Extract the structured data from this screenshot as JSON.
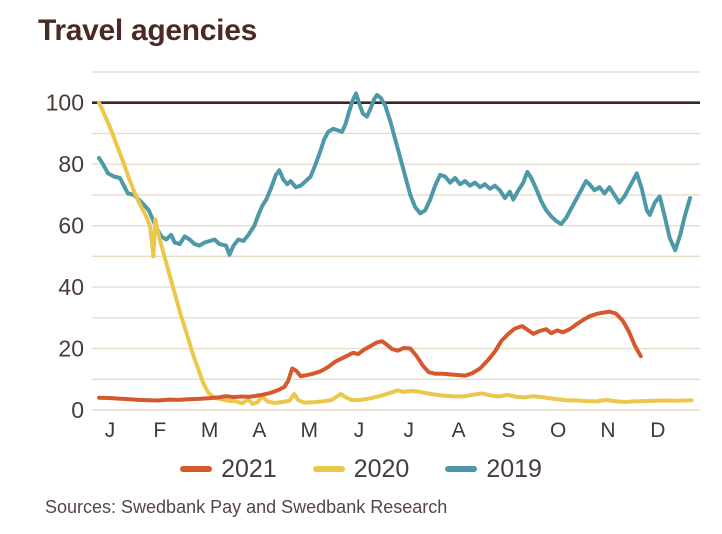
{
  "page": {
    "title": "Travel agencies",
    "source_note": "Sources: Swedbank Pay and Swedbank Research"
  },
  "chart_data": {
    "type": "line",
    "title": "Travel agencies",
    "xlabel": "",
    "ylabel": "",
    "x_axis": {
      "tick_labels": [
        "J",
        "F",
        "M",
        "A",
        "M",
        "J",
        "J",
        "A",
        "S",
        "O",
        "N",
        "D"
      ],
      "unit": "months"
    },
    "y_axis": {
      "ticks": [
        0,
        20,
        40,
        60,
        80,
        100
      ],
      "range": [
        0,
        110
      ],
      "gridline_step": 10,
      "baseline_highlight": 100,
      "grid": true
    },
    "colors": {
      "grid": "#e9dcca",
      "baseline_100": "#3b2428",
      "title": "#4a2a26",
      "tick_text": "#4c3a39",
      "legend_text": "#473c3c",
      "source_text": "#564545"
    },
    "legend_position": "bottom",
    "series": [
      {
        "name": "2021",
        "color": "#d6592e",
        "points": [
          [
            0.0,
            4
          ],
          [
            0.2,
            3.9
          ],
          [
            0.4,
            3.7
          ],
          [
            0.6,
            3.5
          ],
          [
            0.8,
            3.3
          ],
          [
            1.0,
            3.2
          ],
          [
            1.2,
            3.1
          ],
          [
            1.4,
            3.4
          ],
          [
            1.6,
            3.3
          ],
          [
            1.8,
            3.5
          ],
          [
            2.0,
            3.6
          ],
          [
            2.2,
            3.8
          ],
          [
            2.4,
            4.1
          ],
          [
            2.55,
            4.5
          ],
          [
            2.7,
            4.2
          ],
          [
            2.85,
            4.4
          ],
          [
            3.0,
            4.3
          ],
          [
            3.15,
            4.6
          ],
          [
            3.3,
            5.0
          ],
          [
            3.45,
            5.6
          ],
          [
            3.6,
            6.5
          ],
          [
            3.72,
            7.5
          ],
          [
            3.8,
            9.5
          ],
          [
            3.88,
            13.5
          ],
          [
            3.96,
            12.8
          ],
          [
            4.05,
            11.0
          ],
          [
            4.15,
            11.3
          ],
          [
            4.3,
            11.8
          ],
          [
            4.45,
            12.6
          ],
          [
            4.6,
            14.0
          ],
          [
            4.75,
            15.8
          ],
          [
            4.9,
            17.0
          ],
          [
            5.0,
            17.8
          ],
          [
            5.1,
            18.6
          ],
          [
            5.2,
            18.2
          ],
          [
            5.32,
            19.6
          ],
          [
            5.45,
            20.8
          ],
          [
            5.58,
            22.0
          ],
          [
            5.68,
            22.4
          ],
          [
            5.78,
            21.3
          ],
          [
            5.88,
            19.9
          ],
          [
            6.0,
            19.3
          ],
          [
            6.12,
            20.2
          ],
          [
            6.25,
            20.0
          ],
          [
            6.38,
            17.5
          ],
          [
            6.5,
            14.5
          ],
          [
            6.62,
            12.3
          ],
          [
            6.75,
            11.8
          ],
          [
            6.9,
            11.8
          ],
          [
            7.05,
            11.6
          ],
          [
            7.2,
            11.4
          ],
          [
            7.35,
            11.2
          ],
          [
            7.5,
            12.0
          ],
          [
            7.65,
            13.5
          ],
          [
            7.8,
            16.0
          ],
          [
            7.95,
            19.0
          ],
          [
            8.08,
            22.5
          ],
          [
            8.22,
            24.8
          ],
          [
            8.35,
            26.5
          ],
          [
            8.5,
            27.3
          ],
          [
            8.62,
            25.9
          ],
          [
            8.72,
            24.8
          ],
          [
            8.85,
            25.7
          ],
          [
            8.98,
            26.3
          ],
          [
            9.08,
            25.0
          ],
          [
            9.2,
            25.9
          ],
          [
            9.32,
            25.3
          ],
          [
            9.45,
            26.3
          ],
          [
            9.58,
            27.8
          ],
          [
            9.72,
            29.3
          ],
          [
            9.85,
            30.5
          ],
          [
            9.98,
            31.2
          ],
          [
            10.12,
            31.7
          ],
          [
            10.25,
            32.0
          ],
          [
            10.38,
            31.4
          ],
          [
            10.52,
            29.0
          ],
          [
            10.64,
            25.5
          ],
          [
            10.76,
            21.0
          ],
          [
            10.88,
            17.5
          ]
        ]
      },
      {
        "name": "2020",
        "color": "#ebc74b",
        "points": [
          [
            0.0,
            100
          ],
          [
            0.1,
            96.5
          ],
          [
            0.22,
            92
          ],
          [
            0.35,
            86.5
          ],
          [
            0.48,
            81
          ],
          [
            0.6,
            75.5
          ],
          [
            0.72,
            70.5
          ],
          [
            0.85,
            66
          ],
          [
            0.95,
            63
          ],
          [
            1.02,
            60
          ],
          [
            1.06,
            55
          ],
          [
            1.09,
            50
          ],
          [
            1.13,
            62
          ],
          [
            1.18,
            58
          ],
          [
            1.28,
            52
          ],
          [
            1.4,
            45
          ],
          [
            1.52,
            38
          ],
          [
            1.64,
            31
          ],
          [
            1.76,
            25
          ],
          [
            1.88,
            18.5
          ],
          [
            2.0,
            13
          ],
          [
            2.1,
            8.5
          ],
          [
            2.2,
            5.5
          ],
          [
            2.32,
            4
          ],
          [
            2.45,
            3.5
          ],
          [
            2.6,
            3
          ],
          [
            2.75,
            2.8
          ],
          [
            2.88,
            2.2
          ],
          [
            3.0,
            3.5
          ],
          [
            3.08,
            2
          ],
          [
            3.18,
            2.5
          ],
          [
            3.28,
            4.5
          ],
          [
            3.38,
            2.8
          ],
          [
            3.52,
            2.3
          ],
          [
            3.68,
            2.6
          ],
          [
            3.82,
            3
          ],
          [
            3.92,
            5.2
          ],
          [
            4.0,
            3.2
          ],
          [
            4.12,
            2.4
          ],
          [
            4.3,
            2.5
          ],
          [
            4.5,
            2.8
          ],
          [
            4.68,
            3.3
          ],
          [
            4.85,
            5.2
          ],
          [
            4.95,
            4.2
          ],
          [
            5.08,
            3.2
          ],
          [
            5.25,
            3.3
          ],
          [
            5.45,
            3.8
          ],
          [
            5.65,
            4.6
          ],
          [
            5.85,
            5.6
          ],
          [
            6.0,
            6.4
          ],
          [
            6.12,
            5.9
          ],
          [
            6.28,
            6.2
          ],
          [
            6.45,
            5.9
          ],
          [
            6.6,
            5.4
          ],
          [
            6.75,
            5.0
          ],
          [
            6.92,
            4.7
          ],
          [
            7.1,
            4.5
          ],
          [
            7.3,
            4.4
          ],
          [
            7.5,
            4.9
          ],
          [
            7.68,
            5.4
          ],
          [
            7.85,
            4.8
          ],
          [
            8.02,
            4.4
          ],
          [
            8.2,
            4.9
          ],
          [
            8.38,
            4.3
          ],
          [
            8.55,
            4.1
          ],
          [
            8.72,
            4.5
          ],
          [
            8.9,
            4.2
          ],
          [
            9.05,
            3.8
          ],
          [
            9.22,
            3.5
          ],
          [
            9.4,
            3.2
          ],
          [
            9.6,
            3.1
          ],
          [
            9.8,
            2.9
          ],
          [
            10.0,
            2.8
          ],
          [
            10.18,
            3.3
          ],
          [
            10.35,
            2.9
          ],
          [
            10.55,
            2.6
          ],
          [
            10.75,
            2.8
          ],
          [
            10.95,
            2.9
          ],
          [
            11.15,
            3.0
          ],
          [
            11.35,
            3.1
          ],
          [
            11.55,
            3.0
          ],
          [
            11.75,
            3.1
          ],
          [
            11.9,
            3.2
          ]
        ]
      },
      {
        "name": "2019",
        "color": "#4e99a8",
        "points": [
          [
            0.0,
            82
          ],
          [
            0.08,
            80
          ],
          [
            0.18,
            77
          ],
          [
            0.3,
            76
          ],
          [
            0.42,
            75.5
          ],
          [
            0.5,
            73
          ],
          [
            0.58,
            70.5
          ],
          [
            0.7,
            70
          ],
          [
            0.8,
            68.5
          ],
          [
            0.92,
            66.5
          ],
          [
            1.0,
            65
          ],
          [
            1.08,
            62
          ],
          [
            1.16,
            59
          ],
          [
            1.25,
            56.5
          ],
          [
            1.35,
            55.5
          ],
          [
            1.45,
            57
          ],
          [
            1.52,
            54.5
          ],
          [
            1.62,
            54
          ],
          [
            1.72,
            56.5
          ],
          [
            1.82,
            55.5
          ],
          [
            1.92,
            54
          ],
          [
            2.02,
            53.5
          ],
          [
            2.12,
            54.5
          ],
          [
            2.22,
            55
          ],
          [
            2.32,
            55.5
          ],
          [
            2.42,
            54
          ],
          [
            2.55,
            53.5
          ],
          [
            2.62,
            50.5
          ],
          [
            2.7,
            53.5
          ],
          [
            2.8,
            55.5
          ],
          [
            2.9,
            55
          ],
          [
            3.0,
            57
          ],
          [
            3.06,
            58.5
          ],
          [
            3.12,
            60
          ],
          [
            3.2,
            63.5
          ],
          [
            3.28,
            66.5
          ],
          [
            3.36,
            68.5
          ],
          [
            3.45,
            72
          ],
          [
            3.55,
            76.5
          ],
          [
            3.62,
            78
          ],
          [
            3.7,
            75
          ],
          [
            3.78,
            73.5
          ],
          [
            3.85,
            74.5
          ],
          [
            3.95,
            72.5
          ],
          [
            4.05,
            73
          ],
          [
            4.15,
            74.5
          ],
          [
            4.25,
            76
          ],
          [
            4.35,
            80
          ],
          [
            4.45,
            84.5
          ],
          [
            4.52,
            88
          ],
          [
            4.6,
            90.5
          ],
          [
            4.7,
            91.5
          ],
          [
            4.8,
            91
          ],
          [
            4.88,
            90.5
          ],
          [
            4.95,
            93
          ],
          [
            5.02,
            97
          ],
          [
            5.1,
            101
          ],
          [
            5.16,
            103
          ],
          [
            5.24,
            99
          ],
          [
            5.3,
            96.5
          ],
          [
            5.38,
            95.5
          ],
          [
            5.45,
            98
          ],
          [
            5.52,
            101
          ],
          [
            5.58,
            102.5
          ],
          [
            5.66,
            101.5
          ],
          [
            5.75,
            99
          ],
          [
            5.85,
            94
          ],
          [
            5.95,
            88
          ],
          [
            6.05,
            82
          ],
          [
            6.15,
            76
          ],
          [
            6.25,
            70
          ],
          [
            6.35,
            66
          ],
          [
            6.45,
            64
          ],
          [
            6.55,
            65
          ],
          [
            6.65,
            68.5
          ],
          [
            6.75,
            73
          ],
          [
            6.85,
            76.5
          ],
          [
            6.95,
            76
          ],
          [
            7.05,
            74
          ],
          [
            7.15,
            75.5
          ],
          [
            7.25,
            73.5
          ],
          [
            7.35,
            74.5
          ],
          [
            7.45,
            73
          ],
          [
            7.55,
            74
          ],
          [
            7.65,
            72.5
          ],
          [
            7.75,
            73.5
          ],
          [
            7.85,
            72
          ],
          [
            7.95,
            73
          ],
          [
            8.05,
            71.5
          ],
          [
            8.15,
            69
          ],
          [
            8.25,
            71
          ],
          [
            8.32,
            68.5
          ],
          [
            8.42,
            71.5
          ],
          [
            8.52,
            74
          ],
          [
            8.6,
            77.5
          ],
          [
            8.68,
            75.5
          ],
          [
            8.78,
            72
          ],
          [
            8.88,
            68
          ],
          [
            8.98,
            65
          ],
          [
            9.08,
            63
          ],
          [
            9.18,
            61.5
          ],
          [
            9.28,
            60.5
          ],
          [
            9.38,
            62.5
          ],
          [
            9.48,
            65.5
          ],
          [
            9.58,
            68.5
          ],
          [
            9.68,
            71.5
          ],
          [
            9.78,
            74.5
          ],
          [
            9.85,
            73.5
          ],
          [
            9.95,
            71.5
          ],
          [
            10.05,
            72.5
          ],
          [
            10.15,
            70.5
          ],
          [
            10.25,
            72.5
          ],
          [
            10.35,
            70
          ],
          [
            10.45,
            67.5
          ],
          [
            10.55,
            69.5
          ],
          [
            10.65,
            72.5
          ],
          [
            10.8,
            77
          ],
          [
            10.9,
            72
          ],
          [
            11.0,
            65
          ],
          [
            11.06,
            63.5
          ],
          [
            11.16,
            67.5
          ],
          [
            11.26,
            69.5
          ],
          [
            11.36,
            63
          ],
          [
            11.46,
            56
          ],
          [
            11.57,
            52
          ],
          [
            11.67,
            57
          ],
          [
            11.77,
            63.5
          ],
          [
            11.87,
            69
          ]
        ]
      }
    ]
  }
}
